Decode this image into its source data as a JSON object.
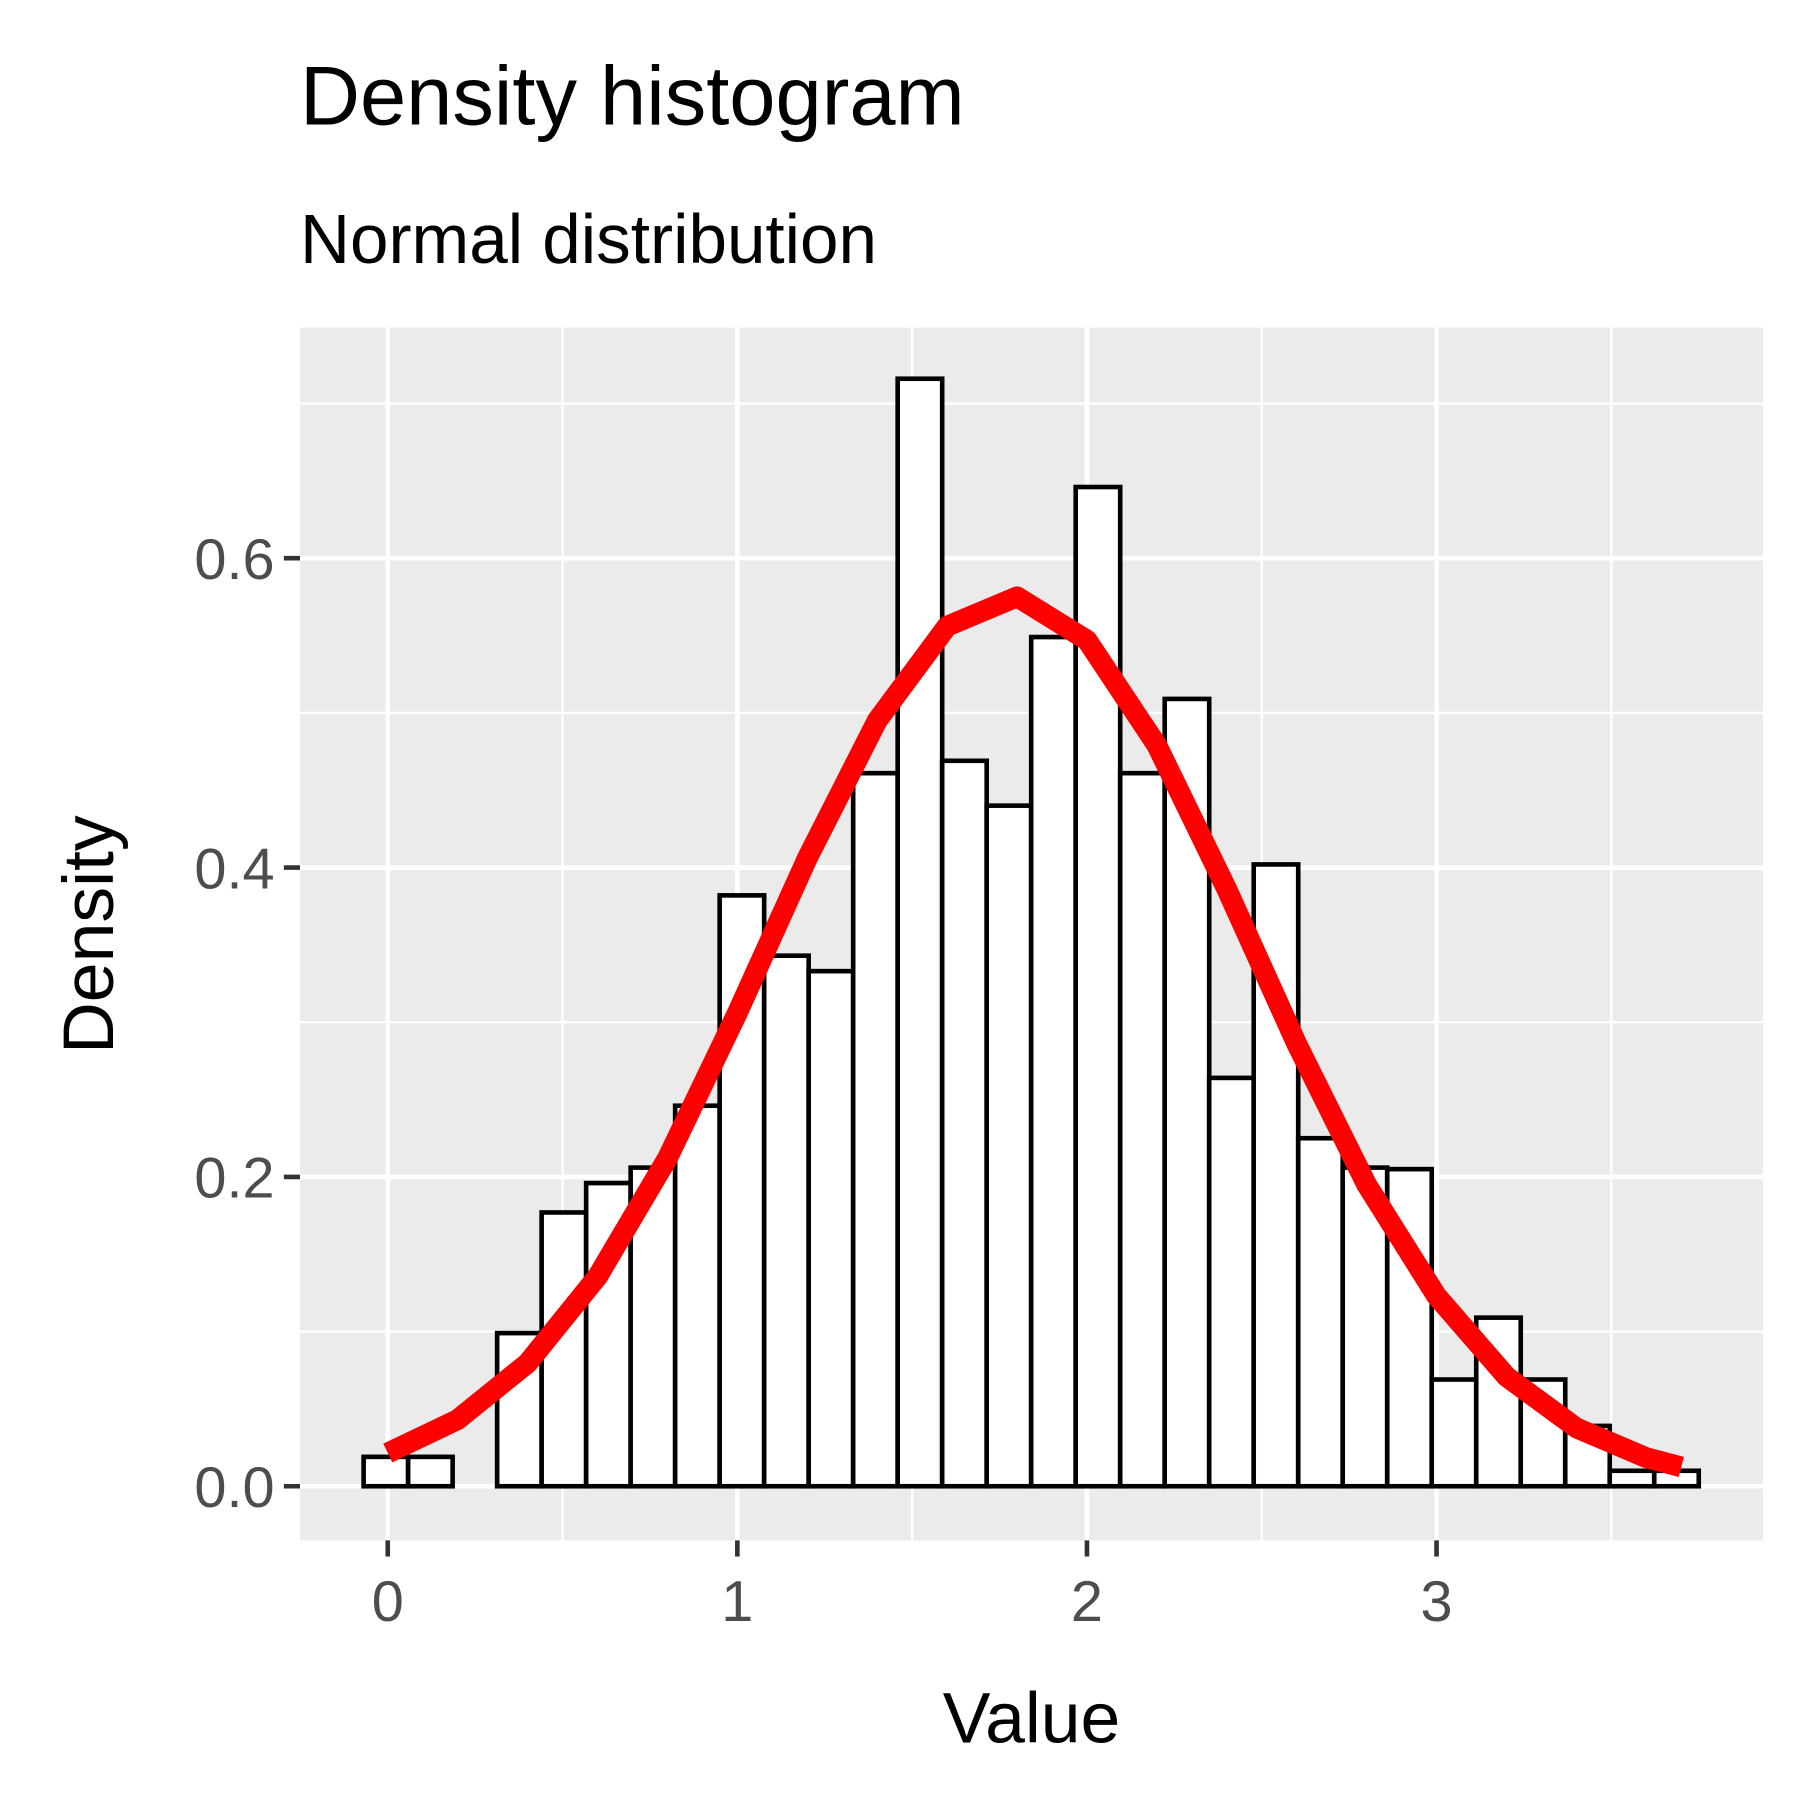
{
  "chart_data": {
    "type": "histogram",
    "title": "Density histogram",
    "subtitle": "Normal distribution",
    "x_label": "Value",
    "y_label": "Density",
    "bins": [
      -0.069,
      0.0583,
      0.1856,
      0.3129,
      0.4402,
      0.5675,
      0.6948,
      0.8221,
      0.9494,
      1.0767,
      1.204,
      1.3313,
      1.4586,
      1.5859,
      1.7132,
      1.8405,
      1.9678,
      2.0951,
      2.2224,
      2.3497,
      2.477,
      2.6043,
      2.7316,
      2.8589,
      2.9862,
      3.1135,
      3.2408,
      3.3681,
      3.4954,
      3.6227,
      3.75
    ],
    "values": [
      0.019,
      0.019,
      0,
      0.099,
      0.177,
      0.196,
      0.206,
      0.246,
      0.382,
      0.343,
      0.333,
      0.461,
      0.716,
      0.469,
      0.44,
      0.549,
      0.646,
      0.461,
      0.509,
      0.264,
      0.402,
      0.225,
      0.206,
      0.205,
      0.069,
      0.109,
      0.069,
      0.039,
      0.01,
      0.01
    ],
    "bar_fill": "#ffffff",
    "bar_edge": "#000000",
    "curve": {
      "color": "#ff0000",
      "x": [
        0,
        0.2,
        0.4,
        0.6,
        0.8,
        1.0,
        1.2,
        1.4,
        1.6,
        1.8,
        2.0,
        2.2,
        2.4,
        2.6,
        2.8,
        3.0,
        3.2,
        3.4,
        3.6,
        3.7
      ],
      "values": [
        0.0215,
        0.0431,
        0.0796,
        0.1355,
        0.212,
        0.306,
        0.406,
        0.495,
        0.556,
        0.575,
        0.547,
        0.479,
        0.386,
        0.286,
        0.195,
        0.123,
        0.0709,
        0.0377,
        0.0185,
        0.0125
      ]
    },
    "xlim": [
      -0.251,
      3.934
    ],
    "ylim": [
      -0.035,
      0.749
    ],
    "xticks": [
      0,
      1,
      2,
      3
    ],
    "yticks": [
      {
        "value": 0,
        "label": "0.0"
      },
      0.2,
      0.4,
      0.6
    ],
    "x_minor_ticks": [
      0.5,
      1.5,
      2.5,
      3.5
    ],
    "y_minor_ticks": [
      0.1,
      0.3,
      0.5,
      0.7
    ],
    "grid": true
  }
}
